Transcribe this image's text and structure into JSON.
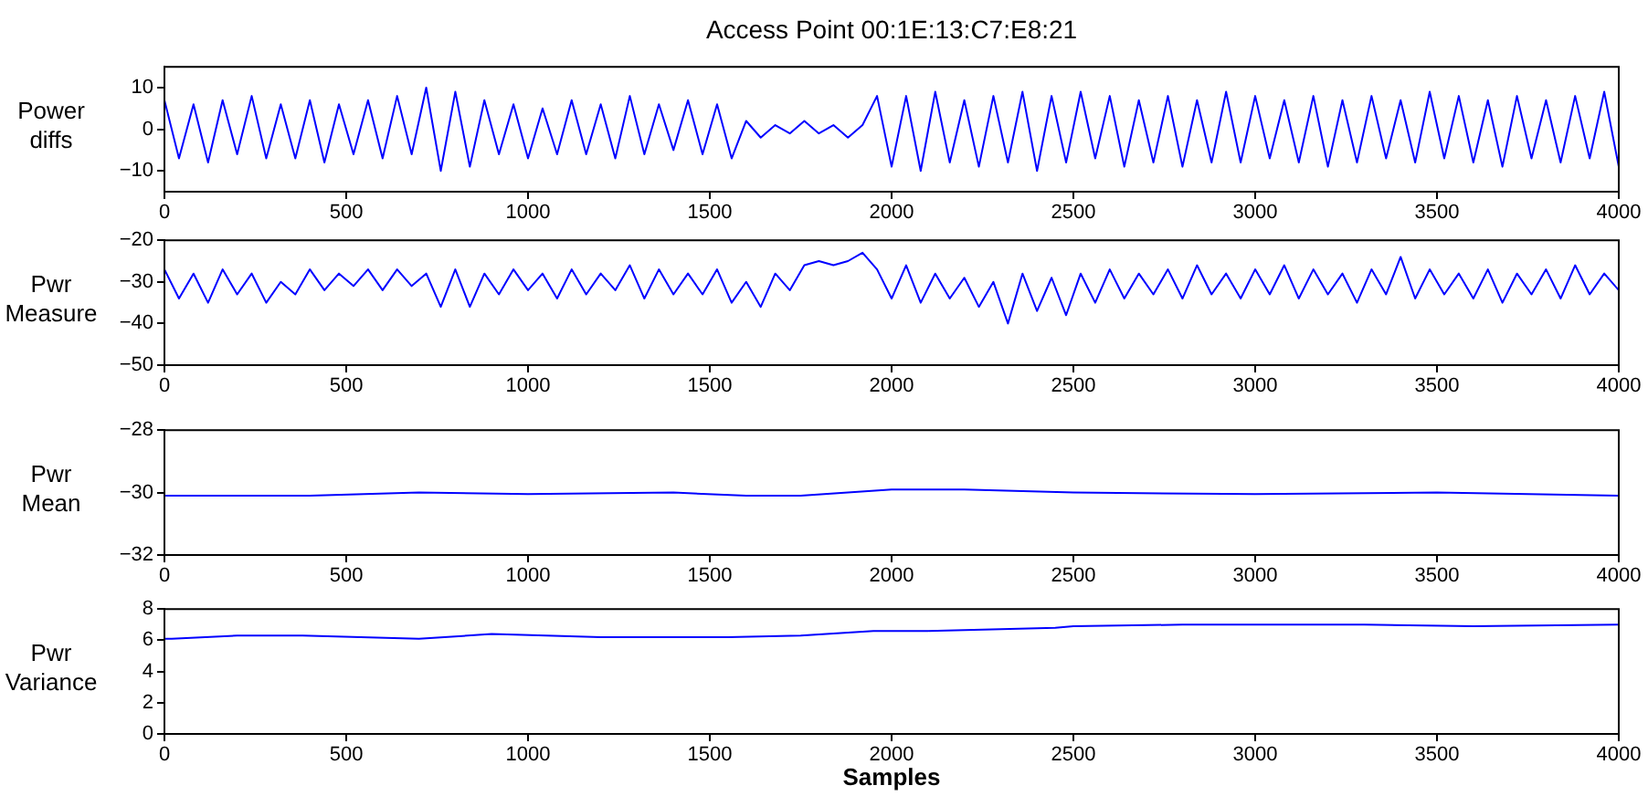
{
  "chart_data": [
    {
      "type": "line",
      "title": "Access Point 00:1E:13:C7:E8:21",
      "ylabel": "Power diffs",
      "marker": "none",
      "x": [
        0,
        40,
        80,
        120,
        160,
        200,
        240,
        280,
        320,
        360,
        400,
        440,
        480,
        520,
        560,
        600,
        640,
        680,
        720,
        760,
        800,
        840,
        880,
        920,
        960,
        1000,
        1040,
        1080,
        1120,
        1160,
        1200,
        1240,
        1280,
        1320,
        1360,
        1400,
        1440,
        1480,
        1520,
        1560,
        1600,
        1640,
        1680,
        1720,
        1760,
        1800,
        1840,
        1880,
        1920,
        1960,
        2000,
        2040,
        2080,
        2120,
        2160,
        2200,
        2240,
        2280,
        2320,
        2360,
        2400,
        2440,
        2480,
        2520,
        2560,
        2600,
        2640,
        2680,
        2720,
        2760,
        2800,
        2840,
        2880,
        2920,
        2960,
        3000,
        3040,
        3080,
        3120,
        3160,
        3200,
        3240,
        3280,
        3320,
        3360,
        3400,
        3440,
        3480,
        3520,
        3560,
        3600,
        3640,
        3680,
        3720,
        3760,
        3800,
        3840,
        3880,
        3920,
        3960,
        4000
      ],
      "series": [
        {
          "color": "#0000ff",
          "values": [
            7,
            -7,
            6,
            -8,
            7,
            -6,
            8,
            -7,
            6,
            -7,
            7,
            -8,
            6,
            -6,
            7,
            -7,
            8,
            -6,
            10,
            -10,
            9,
            -9,
            7,
            -6,
            6,
            -7,
            5,
            -6,
            7,
            -6,
            6,
            -7,
            8,
            -6,
            6,
            -5,
            7,
            -6,
            6,
            -7,
            2,
            -2,
            1,
            -1,
            2,
            -1,
            1,
            -2,
            1,
            8,
            -9,
            8,
            -10,
            9,
            -8,
            7,
            -9,
            8,
            -8,
            9,
            -10,
            8,
            -8,
            9,
            -7,
            8,
            -9,
            7,
            -8,
            8,
            -9,
            7,
            -8,
            9,
            -8,
            8,
            -7,
            7,
            -8,
            8,
            -9,
            7,
            -8,
            8,
            -7,
            7,
            -8,
            9,
            -7,
            8,
            -8,
            7,
            -9,
            8,
            -7,
            7,
            -8,
            8,
            -7,
            9,
            -9
          ]
        }
      ],
      "xlim": [
        0,
        4000
      ],
      "xticks": [
        0,
        500,
        1000,
        1500,
        2000,
        2500,
        3000,
        3500,
        4000
      ],
      "ylim": [
        -15,
        15
      ],
      "yticks": [
        -10,
        0,
        10
      ]
    },
    {
      "type": "line",
      "ylabel": "Pwr Measure",
      "marker": "none",
      "x": [
        0,
        40,
        80,
        120,
        160,
        200,
        240,
        280,
        320,
        360,
        400,
        440,
        480,
        520,
        560,
        600,
        640,
        680,
        720,
        760,
        800,
        840,
        880,
        920,
        960,
        1000,
        1040,
        1080,
        1120,
        1160,
        1200,
        1240,
        1280,
        1320,
        1360,
        1400,
        1440,
        1480,
        1520,
        1560,
        1600,
        1640,
        1680,
        1720,
        1760,
        1800,
        1840,
        1880,
        1920,
        1960,
        2000,
        2040,
        2080,
        2120,
        2160,
        2200,
        2240,
        2280,
        2320,
        2360,
        2400,
        2440,
        2480,
        2520,
        2560,
        2600,
        2640,
        2680,
        2720,
        2760,
        2800,
        2840,
        2880,
        2920,
        2960,
        3000,
        3040,
        3080,
        3120,
        3160,
        3200,
        3240,
        3280,
        3320,
        3360,
        3400,
        3440,
        3480,
        3520,
        3560,
        3600,
        3640,
        3680,
        3720,
        3760,
        3800,
        3840,
        3880,
        3920,
        3960,
        4000
      ],
      "series": [
        {
          "color": "#0000ff",
          "values": [
            -27,
            -34,
            -28,
            -35,
            -27,
            -33,
            -28,
            -35,
            -30,
            -33,
            -27,
            -32,
            -28,
            -31,
            -27,
            -32,
            -27,
            -31,
            -28,
            -36,
            -27,
            -36,
            -28,
            -33,
            -27,
            -32,
            -28,
            -34,
            -27,
            -33,
            -28,
            -32,
            -26,
            -34,
            -27,
            -33,
            -28,
            -33,
            -27,
            -35,
            -30,
            -36,
            -28,
            -32,
            -26,
            -25,
            -26,
            -25,
            -23,
            -27,
            -34,
            -26,
            -35,
            -28,
            -34,
            -29,
            -36,
            -30,
            -40,
            -28,
            -37,
            -29,
            -38,
            -28,
            -35,
            -27,
            -34,
            -28,
            -33,
            -27,
            -34,
            -26,
            -33,
            -28,
            -34,
            -27,
            -33,
            -26,
            -34,
            -27,
            -33,
            -28,
            -35,
            -27,
            -33,
            -24,
            -34,
            -27,
            -33,
            -28,
            -34,
            -27,
            -35,
            -28,
            -33,
            -27,
            -34,
            -26,
            -33,
            -28,
            -32
          ]
        }
      ],
      "xlim": [
        0,
        4000
      ],
      "xticks": [
        0,
        500,
        1000,
        1500,
        2000,
        2500,
        3000,
        3500,
        4000
      ],
      "ylim": [
        -50,
        -20
      ],
      "yticks": [
        -50,
        -40,
        -30,
        -20
      ]
    },
    {
      "type": "line",
      "ylabel": "Pwr Mean",
      "marker": "none",
      "x": [
        0,
        400,
        700,
        1000,
        1400,
        1600,
        1750,
        2000,
        2200,
        2500,
        3000,
        3500,
        4000
      ],
      "series": [
        {
          "color": "#0000ff",
          "values": [
            -30.1,
            -30.1,
            -30.0,
            -30.05,
            -30.0,
            -30.1,
            -30.1,
            -29.9,
            -29.9,
            -30.0,
            -30.05,
            -30.0,
            -30.1
          ]
        }
      ],
      "xlim": [
        0,
        4000
      ],
      "xticks": [
        0,
        500,
        1000,
        1500,
        2000,
        2500,
        3000,
        3500,
        4000
      ],
      "ylim": [
        -32,
        -28
      ],
      "yticks": [
        -32,
        -30,
        -28
      ]
    },
    {
      "type": "line",
      "ylabel": "Pwr Variance",
      "xlabel": "Samples",
      "marker": "none",
      "x": [
        0,
        20,
        200,
        380,
        700,
        900,
        1200,
        1550,
        1750,
        1950,
        2100,
        2450,
        2500,
        2800,
        3000,
        3300,
        3600,
        4000
      ],
      "series": [
        {
          "color": "#0000ff",
          "values": [
            6.1,
            6.1,
            6.3,
            6.3,
            6.1,
            6.4,
            6.2,
            6.2,
            6.3,
            6.6,
            6.6,
            6.8,
            6.9,
            7.0,
            7.0,
            7.0,
            6.9,
            7.0
          ]
        }
      ],
      "xlim": [
        0,
        4000
      ],
      "xticks": [
        0,
        500,
        1000,
        1500,
        2000,
        2500,
        3000,
        3500,
        4000
      ],
      "ylim": [
        0,
        8
      ],
      "yticks": [
        0,
        2,
        4,
        6,
        8
      ]
    }
  ]
}
